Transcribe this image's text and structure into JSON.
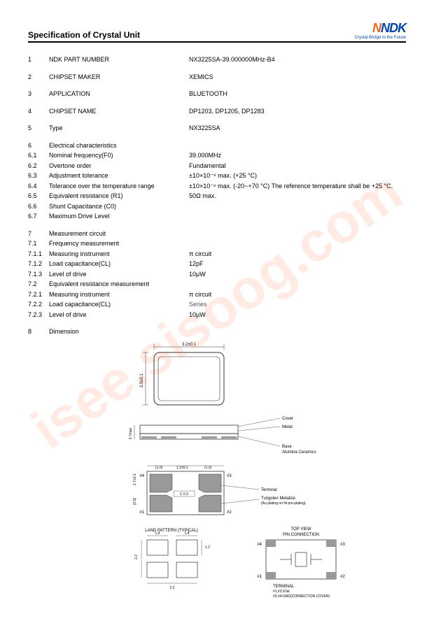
{
  "header": {
    "title": "Specification of Crystal Unit",
    "logo_text": "NDK",
    "tagline": "Crystal  Bridge to the Future"
  },
  "watermark": "isee.sisoog.com",
  "rows": [
    {
      "n": "1",
      "label": "NDK PART NUMBER",
      "value": "NX3225SA-39.000000MHz-B4",
      "gap": true
    },
    {
      "n": "2",
      "label": "CHIPSET MAKER",
      "value": "XEMICS",
      "gap": true
    },
    {
      "n": "3",
      "label": "APPLICATION",
      "value": "BLUETOOTH",
      "gap": true
    },
    {
      "n": "4",
      "label": "CHIPSET NAME",
      "value": "DP1203, DP1205, DP1283",
      "gap": true
    },
    {
      "n": "5",
      "label": "Type",
      "value": "NX3225SA",
      "gap": true
    },
    {
      "n": "6",
      "label": "Electrical characteristics",
      "value": ""
    },
    {
      "n": "6.1",
      "label": "Nominal frequency(F0)",
      "value": "39.000MHz"
    },
    {
      "n": "6.2",
      "label": "Overtone order",
      "value": "Fundamental"
    },
    {
      "n": "6.3",
      "label": "Adjustment tolerance",
      "value": "±10×10⁻⁶ max. (+25 °C)"
    },
    {
      "n": "6.4",
      "label": "Tolerance over the temperature range",
      "value": "±10×10⁻⁶ max. (-20~+70 °C) The reference temperature shall be +25 °C."
    },
    {
      "n": "6.5",
      "label": "Equivalent resistance (R1)",
      "value": "50Ω max."
    },
    {
      "n": "6.6",
      "label": "Shunt Capacitance (C0)",
      "value": ""
    },
    {
      "n": "6.7",
      "label": "Maximum Drive Level",
      "value": "",
      "gap": true
    },
    {
      "n": "7",
      "label": "Measurement circuit",
      "value": ""
    },
    {
      "n": "7.1",
      "label": "Frequency measurement",
      "value": ""
    },
    {
      "n": "7.1.1",
      "label": "Measuring instrument",
      "value": " π circuit"
    },
    {
      "n": "7.1.2",
      "label": "Load capacitance(CL)",
      "value": "12pF"
    },
    {
      "n": "7.1.3",
      "label": "Level of drive",
      "value": "10μW"
    },
    {
      "n": "7.2",
      "label": "Equivalent resistance measurement",
      "value": ""
    },
    {
      "n": "7.2.1",
      "label": "Measuring instrument",
      "value": " π circuit"
    },
    {
      "n": "7.2.2",
      "label": "Load capacitance(CL)",
      "value": "Series"
    },
    {
      "n": "7.2.3",
      "label": "Level of drive",
      "value": "10μW",
      "gap": true
    },
    {
      "n": "8",
      "label": "Dimension",
      "value": ""
    }
  ],
  "dim": {
    "top_w": "3.2±0.1",
    "top_h": "2.5±0.1",
    "side_h": "0.7max",
    "cover": "Cover",
    "metal": "Metal",
    "base": "Base",
    "alumina": "Alumina Ceramics",
    "bot_left": "(1.0)",
    "bot_mid": "1.2±0.1",
    "bot_left2": "(1.0)",
    "bot_h1": "1.7±0.1",
    "bot_h2": "(0.9)",
    "c03": "C 0.3",
    "p1": "#1",
    "p2": "#2",
    "p3": "#3",
    "p4": "#4",
    "terminal": "Terminal",
    "tungsten": "Tungsten Metalize",
    "tungsten2": "(Au plating on Ni pre-plating)",
    "land": "LAND PATTERN  (TYPICAL)",
    "topview": "TOP VIEW",
    "pinconn": "PIN CONNECTION",
    "lp_14a": "1.4",
    "lp_14b": "1.4",
    "lp_12": "1.2",
    "lp_22": "2.2",
    "lp_22b": "2.2",
    "term_label": "TERMINAL",
    "term1": "#1,#3:X'tal",
    "term2": "#2,#4:GND(CONNECTION COVER)"
  },
  "style": {
    "line_color": "#333333",
    "fill_pad": "#999999",
    "text_color": "#000000",
    "value722_color": "#555555"
  }
}
